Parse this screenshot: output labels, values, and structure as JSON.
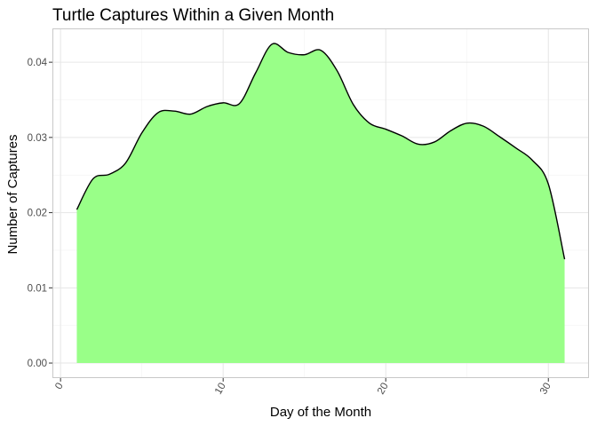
{
  "chart_data": {
    "type": "area",
    "title": "Turtle Captures Within a Given Month",
    "xlabel": "Day of the Month",
    "ylabel": "Number of Captures",
    "xlim": [
      -0.5,
      32.5
    ],
    "ylim": [
      -0.002,
      0.0445
    ],
    "x_ticks": [
      0,
      10,
      20,
      30
    ],
    "x_tick_labels": [
      "0",
      "10",
      "20",
      "30"
    ],
    "x_tick_rotation": -60,
    "x_minor_ticks": [
      5,
      15,
      25
    ],
    "y_ticks": [
      0.0,
      0.01,
      0.02,
      0.03,
      0.04
    ],
    "y_tick_labels": [
      "0.00",
      "0.01",
      "0.02",
      "0.03",
      "0.04"
    ],
    "y_minor_ticks": [
      0.005,
      0.015,
      0.025,
      0.035
    ],
    "grid": true,
    "legend": "none",
    "colors": {
      "fill": "#99FF88",
      "line": "#000000",
      "panel_border": "#c8c8c8",
      "grid_major": "#e6e6e6",
      "grid_minor": "#f2f2f2"
    },
    "x": [
      1,
      2,
      3,
      4,
      5,
      6,
      7,
      8,
      9,
      10,
      11,
      12,
      13,
      14,
      15,
      16,
      17,
      18,
      19,
      20,
      21,
      22,
      23,
      24,
      25,
      26,
      27,
      28,
      29,
      30,
      31
    ],
    "y": [
      0.0204,
      0.0245,
      0.0251,
      0.0266,
      0.0306,
      0.0333,
      0.0335,
      0.0331,
      0.0341,
      0.0346,
      0.0345,
      0.0386,
      0.0424,
      0.0413,
      0.041,
      0.0416,
      0.0389,
      0.0344,
      0.0319,
      0.0311,
      0.0302,
      0.0291,
      0.0294,
      0.0309,
      0.0319,
      0.0315,
      0.0301,
      0.0286,
      0.027,
      0.0238,
      0.0138
    ]
  }
}
